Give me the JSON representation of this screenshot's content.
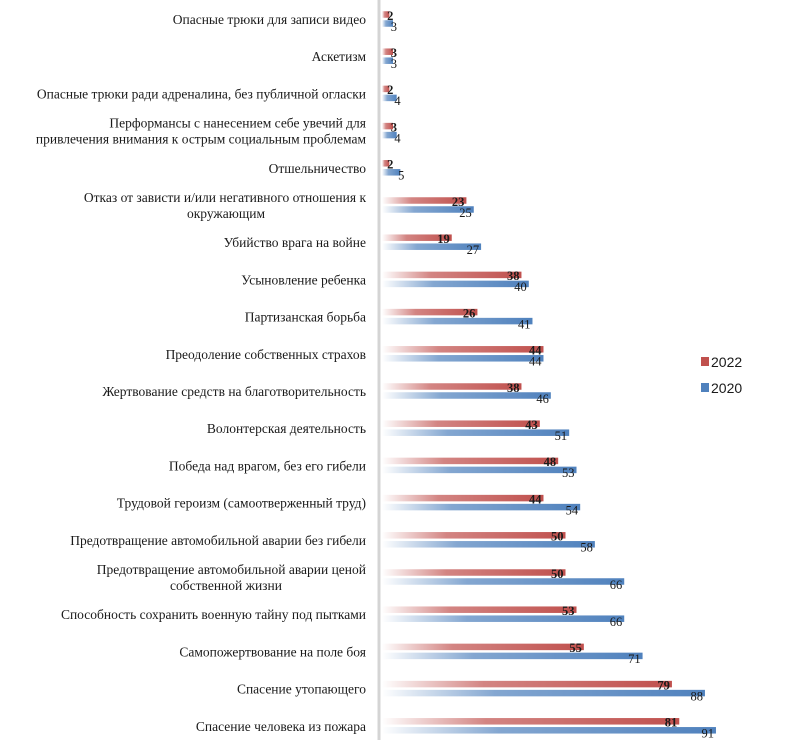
{
  "chart_data": {
    "type": "bar",
    "orientation": "horizontal",
    "title": "",
    "xlabel": "",
    "ylabel": "",
    "xlim": [
      0,
      100
    ],
    "grid": false,
    "legend_position": "right",
    "categories": [
      "Опасные трюки для записи видео",
      "Аскетизм",
      "Опасные трюки ради адреналина, без публичной огласки",
      "Перформансы с нанесением себе увечий для|привлечения внимания к острым социальным проблемам",
      "Отшельничество",
      "Отказ от зависти и/или негативного отношения к|окружающим",
      "Убийство врага на войне",
      "Усыновление ребенка",
      "Партизанская борьба",
      "Преодоление собственных страхов",
      "Жертвование средств на благотворительность",
      "Волонтерская деятельность",
      "Победа над врагом, без его гибели",
      "Трудовой героизм (самоотверженный труд)",
      "Предотвращение автомобильной аварии без гибели",
      "Предотвращение автомобильной аварии ценой|собственной жизни",
      "Способность сохранить военную тайну под пытками",
      "Самопожертвование на поле боя",
      "Спасение утопающего",
      "Спасение человека из пожара"
    ],
    "series": [
      {
        "name": "2022",
        "color": "#c0504d",
        "values": [
          2,
          3,
          2,
          3,
          2,
          23,
          19,
          38,
          26,
          44,
          38,
          43,
          48,
          44,
          50,
          50,
          53,
          55,
          79,
          81
        ]
      },
      {
        "name": "2020",
        "color": "#4f81bd",
        "values": [
          3,
          3,
          4,
          4,
          5,
          25,
          27,
          40,
          41,
          44,
          46,
          51,
          53,
          54,
          58,
          66,
          66,
          71,
          88,
          91
        ]
      }
    ],
    "data_labels": true
  },
  "legend": {
    "items": [
      {
        "label": "2022",
        "color": "#c0504d"
      },
      {
        "label": "2020",
        "color": "#4f81bd"
      }
    ]
  }
}
